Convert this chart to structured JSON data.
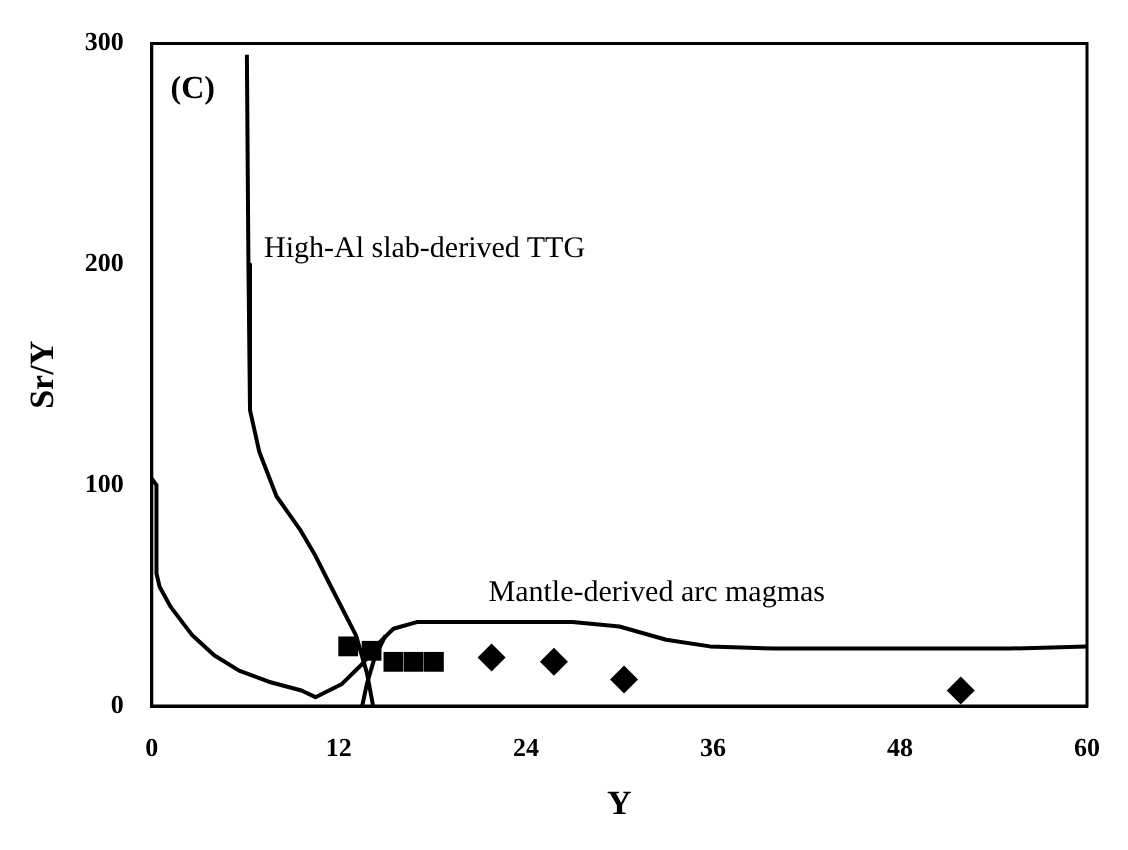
{
  "chart_data": {
    "type": "scatter",
    "xlabel": "Y",
    "ylabel": "Sr/Y",
    "xlim": [
      0,
      60
    ],
    "ylim": [
      0,
      300
    ],
    "xticks": [
      0,
      12,
      24,
      36,
      48,
      60
    ],
    "yticks": [
      0,
      100,
      200,
      300
    ],
    "grid": false,
    "legend": false,
    "annotations": [
      "(C)",
      "High-Al slab-derived TTG",
      "Mantle-derived arc magmas"
    ],
    "series": [
      {
        "type": "line",
        "color": "#000000",
        "marker": "none",
        "x": [
          6.1,
          6.2,
          6.3,
          6.9,
          8,
          9.5,
          10.5,
          11.5,
          13.1,
          13.8,
          14.2
        ],
        "values": [
          295,
          200,
          134,
          115,
          95,
          80,
          68,
          54,
          32,
          15,
          0
        ]
      },
      {
        "type": "line",
        "color": "#000000",
        "marker": "none",
        "x": [
          0,
          0.3,
          0.3,
          0.5,
          1.2,
          2.6,
          4,
          5.6,
          7.5,
          9.6,
          10.5,
          12.2,
          13.5,
          14.5,
          15.5,
          17,
          20,
          27,
          30,
          33,
          35.8,
          40,
          48,
          55,
          60
        ],
        "values": [
          103,
          100,
          60,
          54,
          45,
          32,
          23,
          16,
          11,
          7,
          4,
          10,
          19,
          28,
          35,
          38,
          38,
          38,
          36,
          30,
          27,
          26,
          26,
          26,
          27
        ]
      },
      {
        "type": "line",
        "color": "#000000",
        "marker": "none",
        "x": [
          13.5,
          13.8,
          14.3,
          15
        ],
        "values": [
          0,
          10,
          22,
          32
        ]
      },
      {
        "color": "#000000",
        "marker": "square",
        "x": [
          12.6,
          14.1,
          15.5,
          16.8,
          18.1
        ],
        "values": [
          27,
          25,
          20,
          20,
          20
        ]
      },
      {
        "color": "#000000",
        "marker": "diamond",
        "x": [
          21.8,
          25.8,
          30.3,
          51.9
        ],
        "values": [
          22,
          20,
          12,
          7
        ]
      }
    ]
  }
}
